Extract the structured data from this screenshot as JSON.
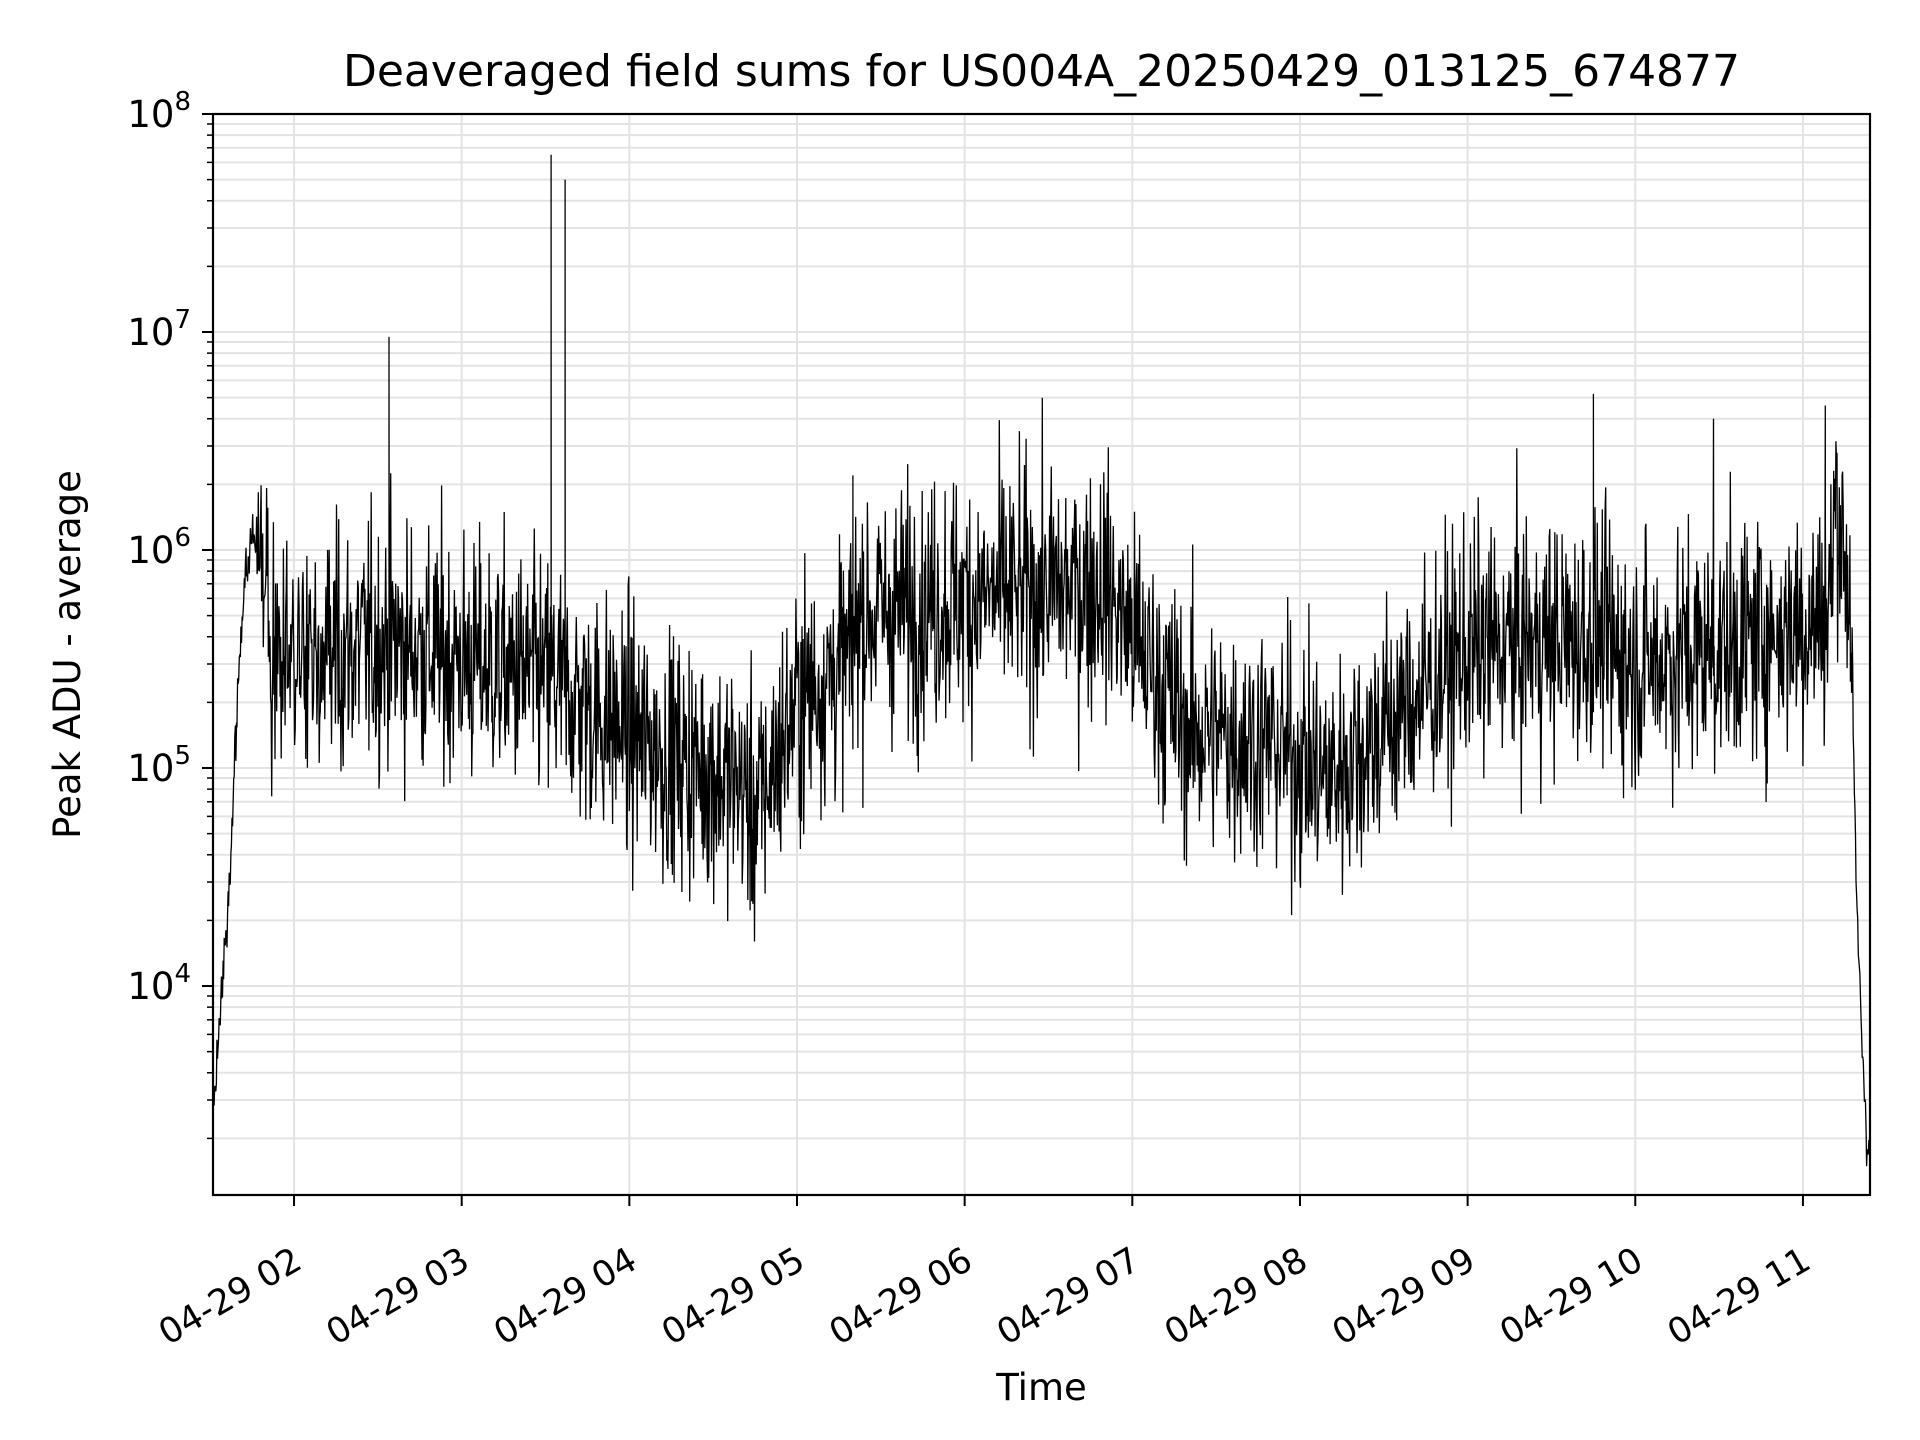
{
  "chart_data": {
    "type": "line",
    "title": "Deaveraged field sums for US004A_20250429_013125_674877",
    "xlabel": "Time",
    "ylabel": "Peak ADU - average",
    "yscale": "log",
    "ylim": [
      1100,
      100000000
    ],
    "xlim": [
      "2025-04-29 01:31",
      "2025-04-29 11:24"
    ],
    "grid": true,
    "line_color": "#000000",
    "grid_color": "#e3e3e3",
    "x_ticks": [
      {
        "t": "2025-04-29 02:00",
        "label": "04-29 02"
      },
      {
        "t": "2025-04-29 03:00",
        "label": "04-29 03"
      },
      {
        "t": "2025-04-29 04:00",
        "label": "04-29 04"
      },
      {
        "t": "2025-04-29 05:00",
        "label": "04-29 05"
      },
      {
        "t": "2025-04-29 06:00",
        "label": "04-29 06"
      },
      {
        "t": "2025-04-29 07:00",
        "label": "04-29 07"
      },
      {
        "t": "2025-04-29 08:00",
        "label": "04-29 08"
      },
      {
        "t": "2025-04-29 09:00",
        "label": "04-29 09"
      },
      {
        "t": "2025-04-29 10:00",
        "label": "04-29 10"
      },
      {
        "t": "2025-04-29 11:00",
        "label": "04-29 11"
      }
    ],
    "y_ticks": [
      {
        "value": 10000,
        "base": "10",
        "exp": "4"
      },
      {
        "value": 100000,
        "base": "10",
        "exp": "5"
      },
      {
        "value": 1000000,
        "base": "10",
        "exp": "6"
      },
      {
        "value": 10000000,
        "base": "10",
        "exp": "7"
      },
      {
        "value": 100000000,
        "base": "10",
        "exp": "8"
      }
    ],
    "series": [
      {
        "points": [
          [
            "2025-04-29 01:31",
            2700
          ],
          [
            "2025-04-29 01:33",
            6500
          ],
          [
            "2025-04-29 01:35",
            14000
          ],
          [
            "2025-04-29 01:37",
            28000
          ],
          [
            "2025-04-29 01:39",
            130000
          ],
          [
            "2025-04-29 01:41",
            400000
          ],
          [
            "2025-04-29 01:43",
            850000
          ],
          [
            "2025-04-29 01:45",
            1250000
          ],
          [
            "2025-04-29 01:48",
            950000
          ],
          [
            "2025-04-29 01:51",
            600000
          ],
          [
            "2025-04-29 01:54",
            300000
          ],
          [
            "2025-04-29 01:52",
            200000
          ],
          [
            "2025-04-29 02:34",
            9500000
          ],
          [
            "2025-04-29 02:35",
            380000
          ],
          [
            "2025-04-29 03:32",
            65000000
          ],
          [
            "2025-04-29 03:33",
            250000
          ],
          [
            "2025-04-29 03:37",
            50000000
          ],
          [
            "2025-04-29 03:38",
            220000
          ],
          [
            "2025-04-29 04:10",
            120000
          ],
          [
            "2025-04-29 04:40",
            85000
          ],
          [
            "2025-04-29 04:45",
            60000
          ],
          [
            "2025-04-29 05:00",
            200000
          ],
          [
            "2025-04-29 05:20",
            330000
          ],
          [
            "2025-04-29 05:20",
            2200000
          ],
          [
            "2025-04-29 05:21",
            500000
          ],
          [
            "2025-04-29 06:00",
            600000
          ],
          [
            "2025-04-29 06:50",
            700000
          ],
          [
            "2025-04-29 07:00",
            400000
          ],
          [
            "2025-04-29 07:20",
            150000
          ],
          [
            "2025-04-29 07:50",
            130000
          ],
          [
            "2025-04-29 08:10",
            90000
          ],
          [
            "2025-04-29 08:40",
            200000
          ],
          [
            "2025-04-29 09:00",
            350000
          ],
          [
            "2025-04-29 09:45",
            5200000
          ],
          [
            "2025-04-29 09:46",
            400000
          ],
          [
            "2025-04-29 10:00",
            300000
          ],
          [
            "2025-04-29 10:28",
            4000000
          ],
          [
            "2025-04-29 10:29",
            350000
          ],
          [
            "2025-04-29 11:08",
            4600000
          ],
          [
            "2025-04-29 11:09",
            500000
          ],
          [
            "2025-04-29 11:12",
            1800000
          ],
          [
            "2025-04-29 11:17",
            600000
          ],
          [
            "2025-04-29 11:19",
            30000
          ],
          [
            "2025-04-29 11:21",
            6000
          ],
          [
            "2025-04-29 11:23",
            1900
          ]
        ]
      }
    ]
  }
}
